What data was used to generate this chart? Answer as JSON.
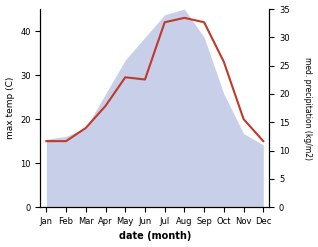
{
  "months": [
    "Jan",
    "Feb",
    "Mar",
    "Apr",
    "May",
    "Jun",
    "Jul",
    "Aug",
    "Sep",
    "Oct",
    "Nov",
    "Dec"
  ],
  "max_temp": [
    15,
    15,
    18,
    23,
    29.5,
    29,
    42,
    43,
    42,
    33,
    20,
    15
  ],
  "precipitation": [
    12,
    12.5,
    14,
    20,
    26,
    30,
    34,
    35,
    30,
    20,
    13,
    11
  ],
  "temp_color": "#c0392b",
  "precip_fill_color": "#c8cfe8",
  "temp_ylim": [
    0,
    45
  ],
  "precip_ylim": [
    0,
    35
  ],
  "ylabel_left": "max temp (C)",
  "ylabel_right": "med. precipitation (kg/m2)",
  "xlabel": "date (month)",
  "temp_yticks": [
    0,
    10,
    20,
    30,
    40
  ],
  "precip_yticks": [
    0,
    5,
    10,
    15,
    20,
    25,
    30,
    35
  ],
  "background_color": "#ffffff"
}
